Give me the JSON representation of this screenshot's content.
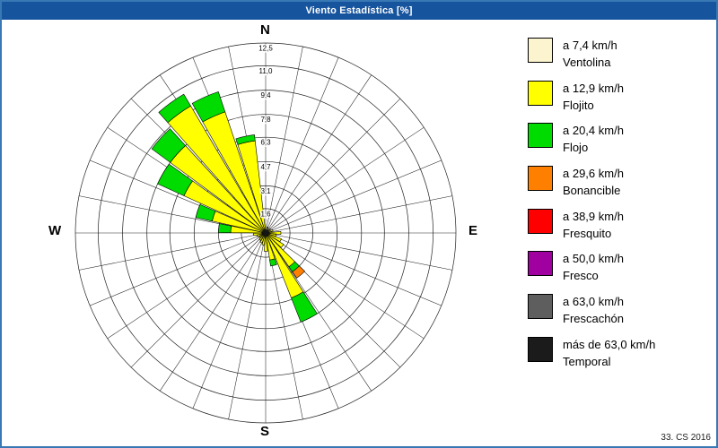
{
  "window": {
    "title": "Viento Estadística [%]"
  },
  "compass": {
    "north": "N",
    "east": "E",
    "south": "S",
    "west": "W"
  },
  "credit": "33. CS 2016",
  "chart_data": {
    "type": "bar",
    "subtype": "wind-rose-polar-stacked",
    "units": "%",
    "title": "Viento Estadística [%]",
    "rlim": [
      0,
      12.5
    ],
    "ring_values": [
      1.6,
      3.1,
      4.7,
      6.3,
      7.8,
      9.4,
      11.0,
      12.5
    ],
    "ring_labels": [
      "1,6",
      "3,1",
      "4,7",
      "6,3",
      "7,8",
      "9,4",
      "11,0",
      "12,5"
    ],
    "grid": {
      "on": true,
      "rings": 8,
      "spokes": 32
    },
    "center_marker": {
      "color": "#151515"
    },
    "categories": [
      {
        "speed": "a 7,4 km/h",
        "name": "Ventolina",
        "color": "#FCF4CE"
      },
      {
        "speed": "a 12,9 km/h",
        "name": "Flojito",
        "color": "#FFFF00"
      },
      {
        "speed": "a 20,4 km/h",
        "name": "Flojo",
        "color": "#00DC00"
      },
      {
        "speed": "a 29,6 km/h",
        "name": "Bonancible",
        "color": "#FF8000"
      },
      {
        "speed": "a 38,9 km/h",
        "name": "Fresquito",
        "color": "#FF0000"
      },
      {
        "speed": "a 50,0 km/h",
        "name": "Fresco",
        "color": "#A000A0"
      },
      {
        "speed": "a 63,0 km/h",
        "name": "Frescachón",
        "color": "#5E5E5E"
      },
      {
        "speed": "más de 63,0 km/h",
        "name": "Temporal",
        "color": "#1B1B1B"
      }
    ],
    "petals": [
      {
        "angle_deg": 348,
        "stack": [
          0.2,
          5.9,
          0.4
        ]
      },
      {
        "angle_deg": 336,
        "stack": [
          0.2,
          8.2,
          1.4
        ]
      },
      {
        "angle_deg": 324,
        "stack": [
          0.2,
          9.5,
          0.9
        ]
      },
      {
        "angle_deg": 312,
        "stack": [
          0.2,
          7.6,
          1.5
        ]
      },
      {
        "angle_deg": 300,
        "stack": [
          0.2,
          5.7,
          1.9
        ]
      },
      {
        "angle_deg": 288,
        "stack": [
          0.2,
          3.4,
          1.1
        ]
      },
      {
        "angle_deg": 276,
        "stack": [
          0.2,
          2.1,
          0.8
        ]
      },
      {
        "angle_deg": 140,
        "stack": [
          0.2,
          2.5,
          0.4,
          0.5
        ]
      },
      {
        "angle_deg": 153,
        "stack": [
          0.2,
          4.4,
          1.7
        ]
      },
      {
        "angle_deg": 166,
        "stack": [
          0.2,
          1.6,
          0.4
        ]
      },
      {
        "angle_deg": 179,
        "stack": [
          0.2,
          1.0
        ]
      },
      {
        "angle_deg": 192,
        "stack": [
          0.1,
          0.7
        ]
      },
      {
        "angle_deg": 205,
        "stack": [
          0.1,
          0.6
        ]
      },
      {
        "angle_deg": 220,
        "stack": [
          0.1,
          0.5
        ]
      },
      {
        "angle_deg": 236,
        "stack": [
          0.1,
          0.4
        ]
      },
      {
        "angle_deg": 251,
        "stack": [
          0.1,
          0.5
        ]
      },
      {
        "angle_deg": 263,
        "stack": [
          0.1,
          0.7
        ]
      },
      {
        "angle_deg": 90,
        "stack": [
          0.2,
          0.8
        ]
      },
      {
        "angle_deg": 103,
        "stack": [
          0.1,
          0.6
        ]
      },
      {
        "angle_deg": 116,
        "stack": [
          0.2,
          0.9
        ]
      },
      {
        "angle_deg": 128,
        "stack": [
          0.2,
          1.2
        ]
      },
      {
        "angle_deg": 20,
        "stack": [
          0.1,
          0.3
        ]
      },
      {
        "angle_deg": 48,
        "stack": [
          0.1,
          0.3
        ]
      },
      {
        "angle_deg": 70,
        "stack": [
          0.1,
          0.4
        ]
      }
    ]
  }
}
